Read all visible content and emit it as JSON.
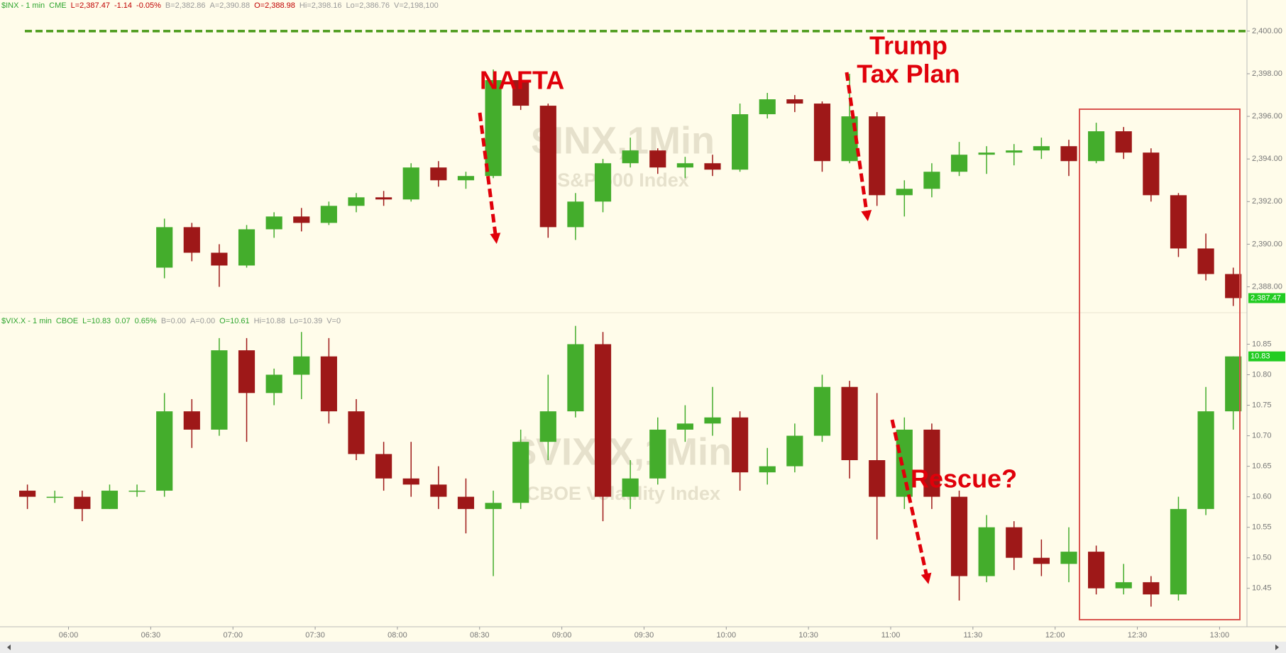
{
  "chart_data": [
    {
      "type": "candlestick",
      "header": [
        {
          "text": "$INX - 1 min",
          "color": "#2ea52e"
        },
        {
          "text": "CME",
          "color": "#2ea52e"
        },
        {
          "text": "L=2,387.47",
          "color": "#c00000"
        },
        {
          "text": "-1.14",
          "color": "#c00000"
        },
        {
          "text": "-0.05%",
          "color": "#c00000"
        },
        {
          "text": "B=2,382.86",
          "color": "#999999"
        },
        {
          "text": "A=2,390.88",
          "color": "#999999"
        },
        {
          "text": "O=2,388.98",
          "color": "#c00000"
        },
        {
          "text": "Hi=2,398.16",
          "color": "#999999"
        },
        {
          "text": "Lo=2,386.76",
          "color": "#999999"
        },
        {
          "text": "V=2,198,100",
          "color": "#999999"
        }
      ],
      "watermark": "$INX,1Min",
      "subtitle": "S&P 500 Index",
      "annotations": [
        "NAFTA",
        "Trump",
        "Tax Plan"
      ],
      "up_color": "#44ad2c",
      "down_color": "#9e1818",
      "xlim": [
        "05:35",
        "13:10"
      ],
      "x": [
        "06:30",
        "06:40",
        "06:50",
        "07:00",
        "07:10",
        "07:20",
        "07:30",
        "07:40",
        "07:50",
        "08:00",
        "08:10",
        "08:20",
        "08:30",
        "08:40",
        "08:50",
        "09:00",
        "09:10",
        "09:20",
        "09:30",
        "09:40",
        "09:50",
        "10:00",
        "10:10",
        "10:20",
        "10:30",
        "10:40",
        "10:50",
        "11:00",
        "11:10",
        "11:20",
        "11:30",
        "11:40",
        "11:50",
        "12:00",
        "12:10",
        "12:20",
        "12:30",
        "12:40",
        "12:50",
        "13:00"
      ],
      "open": [
        2388.9,
        2390.8,
        2389.6,
        2389.0,
        2390.7,
        2391.3,
        2391.0,
        2391.8,
        2392.2,
        2392.1,
        2393.6,
        2393.0,
        2393.2,
        2397.7,
        2396.5,
        2390.8,
        2392.0,
        2393.8,
        2394.4,
        2393.6,
        2393.8,
        2393.5,
        2396.1,
        2396.8,
        2396.6,
        2393.9,
        2396.0,
        2392.3,
        2392.6,
        2393.4,
        2394.2,
        2394.3,
        2394.4,
        2394.6,
        2393.9,
        2395.3,
        2394.3,
        2392.3,
        2389.8,
        2388.6
      ],
      "high": [
        2391.2,
        2391.0,
        2390.0,
        2390.9,
        2391.5,
        2391.7,
        2392.0,
        2392.4,
        2392.5,
        2393.8,
        2393.9,
        2393.4,
        2398.2,
        2397.9,
        2396.6,
        2392.4,
        2394.0,
        2395.0,
        2394.5,
        2394.1,
        2394.2,
        2396.6,
        2397.1,
        2397.0,
        2396.7,
        2398.0,
        2396.2,
        2393.0,
        2393.8,
        2394.8,
        2394.6,
        2394.7,
        2395.0,
        2394.9,
        2395.7,
        2395.5,
        2394.5,
        2392.4,
        2390.5,
        2388.9
      ],
      "low": [
        2388.4,
        2389.2,
        2388.0,
        2388.9,
        2390.3,
        2390.6,
        2390.9,
        2391.5,
        2391.8,
        2392.0,
        2392.7,
        2392.6,
        2393.1,
        2396.3,
        2390.3,
        2390.2,
        2391.5,
        2393.6,
        2393.3,
        2393.1,
        2393.2,
        2393.4,
        2395.9,
        2396.2,
        2393.4,
        2393.8,
        2391.8,
        2391.3,
        2392.2,
        2393.2,
        2393.3,
        2393.7,
        2394.0,
        2393.2,
        2393.8,
        2394.0,
        2392.0,
        2389.4,
        2388.3,
        2387.1
      ],
      "close": [
        2390.8,
        2389.6,
        2389.0,
        2390.7,
        2391.3,
        2391.0,
        2391.8,
        2392.2,
        2392.1,
        2393.6,
        2393.0,
        2393.2,
        2397.7,
        2396.5,
        2390.8,
        2392.0,
        2393.8,
        2394.4,
        2393.6,
        2393.8,
        2393.5,
        2396.1,
        2396.8,
        2396.6,
        2393.9,
        2396.0,
        2392.3,
        2392.6,
        2393.4,
        2394.2,
        2394.3,
        2394.4,
        2394.6,
        2393.9,
        2395.3,
        2394.3,
        2392.3,
        2389.8,
        2388.6,
        2387.47
      ],
      "ylim": [
        2386.92,
        2401.46
      ],
      "yticks": [
        {
          "value": 2388,
          "label": "2,388.00"
        },
        {
          "value": 2390,
          "label": "2,390.00"
        },
        {
          "value": 2392,
          "label": "2,392.00"
        },
        {
          "value": 2394,
          "label": "2,394.00"
        },
        {
          "value": 2396,
          "label": "2,396.00"
        },
        {
          "value": 2398,
          "label": "2,398.00"
        },
        {
          "value": 2400,
          "label": "2,400.00"
        }
      ],
      "reference_line": 2400,
      "reference_color": "#4a9a1a",
      "last": {
        "value": 2387.47,
        "label": "2,387.47"
      },
      "last_color": "#22cc22"
    },
    {
      "type": "candlestick",
      "header": [
        {
          "text": "$VIX.X - 1 min",
          "color": "#2ea52e"
        },
        {
          "text": "CBOE",
          "color": "#2ea52e"
        },
        {
          "text": "L=10.83",
          "color": "#2ea52e"
        },
        {
          "text": "0.07",
          "color": "#2ea52e"
        },
        {
          "text": "0.65%",
          "color": "#2ea52e"
        },
        {
          "text": "B=0.00",
          "color": "#999999"
        },
        {
          "text": "A=0.00",
          "color": "#999999"
        },
        {
          "text": "O=10.61",
          "color": "#2ea52e"
        },
        {
          "text": "Hi=10.88",
          "color": "#999999"
        },
        {
          "text": "Lo=10.39",
          "color": "#999999"
        },
        {
          "text": "V=0",
          "color": "#999999"
        }
      ],
      "watermark": "$VIX.X,1Min",
      "subtitle": "CBOE Volatility Index",
      "annotations": [
        "Rescue?"
      ],
      "up_color": "#44ad2c",
      "down_color": "#9e1818",
      "xlim": [
        "05:35",
        "13:10"
      ],
      "xticks": [
        "06:00",
        "06:30",
        "07:00",
        "07:30",
        "08:00",
        "08:30",
        "09:00",
        "09:30",
        "10:00",
        "10:30",
        "11:00",
        "11:30",
        "12:00",
        "12:30",
        "13:00"
      ],
      "x": [
        "05:40",
        "05:50",
        "06:00",
        "06:10",
        "06:20",
        "06:30",
        "06:40",
        "06:50",
        "07:00",
        "07:10",
        "07:20",
        "07:30",
        "07:40",
        "07:50",
        "08:00",
        "08:10",
        "08:20",
        "08:30",
        "08:40",
        "08:50",
        "09:00",
        "09:10",
        "09:20",
        "09:30",
        "09:40",
        "09:50",
        "10:00",
        "10:10",
        "10:20",
        "10:30",
        "10:40",
        "10:50",
        "11:00",
        "11:10",
        "11:20",
        "11:30",
        "11:40",
        "11:50",
        "12:00",
        "12:10",
        "12:20",
        "12:30",
        "12:40",
        "12:50",
        "13:00"
      ],
      "open": [
        10.61,
        10.6,
        10.6,
        10.58,
        10.61,
        10.61,
        10.74,
        10.71,
        10.84,
        10.77,
        10.8,
        10.83,
        10.74,
        10.67,
        10.63,
        10.62,
        10.6,
        10.58,
        10.59,
        10.69,
        10.74,
        10.85,
        10.6,
        10.63,
        10.71,
        10.72,
        10.73,
        10.64,
        10.65,
        10.7,
        10.78,
        10.66,
        10.6,
        10.71,
        10.6,
        10.47,
        10.55,
        10.5,
        10.49,
        10.51,
        10.45,
        10.46,
        10.44,
        10.58,
        10.74
      ],
      "high": [
        10.62,
        10.61,
        10.61,
        10.62,
        10.62,
        10.77,
        10.76,
        10.86,
        10.86,
        10.81,
        10.87,
        10.86,
        10.76,
        10.69,
        10.69,
        10.65,
        10.63,
        10.61,
        10.71,
        10.8,
        10.88,
        10.87,
        10.66,
        10.73,
        10.75,
        10.78,
        10.74,
        10.68,
        10.72,
        10.8,
        10.79,
        10.77,
        10.73,
        10.72,
        10.61,
        10.57,
        10.56,
        10.53,
        10.55,
        10.52,
        10.49,
        10.47,
        10.6,
        10.78,
        10.83
      ],
      "low": [
        10.58,
        10.59,
        10.56,
        10.58,
        10.6,
        10.6,
        10.68,
        10.7,
        10.69,
        10.75,
        10.76,
        10.72,
        10.66,
        10.61,
        10.6,
        10.58,
        10.54,
        10.47,
        10.58,
        10.66,
        10.73,
        10.56,
        10.58,
        10.62,
        10.69,
        10.7,
        10.61,
        10.62,
        10.64,
        10.69,
        10.63,
        10.53,
        10.58,
        10.58,
        10.43,
        10.46,
        10.48,
        10.47,
        10.46,
        10.44,
        10.44,
        10.42,
        10.43,
        10.57,
        10.71
      ],
      "close": [
        10.6,
        10.6,
        10.58,
        10.61,
        10.61,
        10.74,
        10.71,
        10.84,
        10.77,
        10.8,
        10.83,
        10.74,
        10.67,
        10.63,
        10.62,
        10.6,
        10.58,
        10.59,
        10.69,
        10.74,
        10.85,
        10.6,
        10.63,
        10.71,
        10.72,
        10.73,
        10.64,
        10.65,
        10.7,
        10.78,
        10.66,
        10.6,
        10.71,
        10.6,
        10.47,
        10.55,
        10.5,
        10.49,
        10.51,
        10.45,
        10.46,
        10.44,
        10.58,
        10.74,
        10.83
      ],
      "ylim": [
        10.387,
        10.897
      ],
      "yticks": [
        10.45,
        {
          "value": 10.5,
          "label": "10.50"
        },
        10.55,
        {
          "value": 10.6,
          "label": "10.60"
        },
        10.65,
        {
          "value": 10.7,
          "label": "10.70"
        },
        10.75,
        {
          "value": 10.8,
          "label": "10.80"
        },
        10.85
      ],
      "last": {
        "value": 10.83,
        "label": "10.83"
      },
      "last_color": "#22cc22"
    }
  ]
}
